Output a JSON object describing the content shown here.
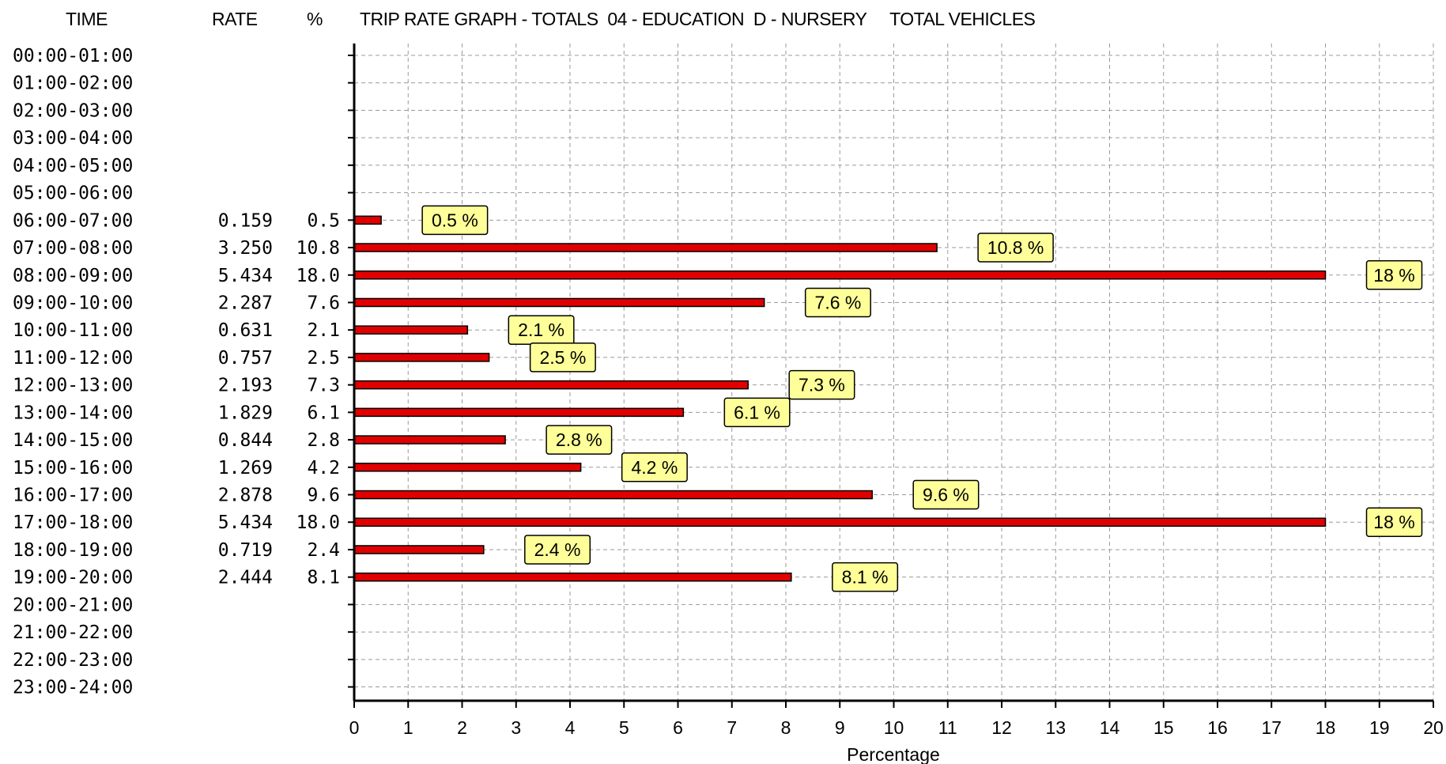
{
  "header": {
    "time_col": "TIME",
    "rate_col": "RATE",
    "pct_col": "%",
    "title": "TRIP RATE GRAPH - TOTALS  04 - EDUCATION  D - NURSERY     TOTAL VEHICLES"
  },
  "chart_data": {
    "type": "bar",
    "orientation": "horizontal",
    "title": "TRIP RATE GRAPH - TOTALS  04 - EDUCATION  D - NURSERY     TOTAL VEHICLES",
    "xlabel": "Percentage",
    "xlim": [
      0,
      20
    ],
    "xticks": [
      "0",
      "1",
      "2",
      "3",
      "4",
      "5",
      "6",
      "7",
      "8",
      "9",
      "10",
      "11",
      "12",
      "13",
      "14",
      "15",
      "16",
      "17",
      "18",
      "19",
      "20"
    ],
    "grid": true,
    "bar_color": "#e00000",
    "label_bg": "#ffff99",
    "rows": [
      {
        "time": "00:00-01:00",
        "rate": "",
        "pct": "",
        "value": null,
        "label": ""
      },
      {
        "time": "01:00-02:00",
        "rate": "",
        "pct": "",
        "value": null,
        "label": ""
      },
      {
        "time": "02:00-03:00",
        "rate": "",
        "pct": "",
        "value": null,
        "label": ""
      },
      {
        "time": "03:00-04:00",
        "rate": "",
        "pct": "",
        "value": null,
        "label": ""
      },
      {
        "time": "04:00-05:00",
        "rate": "",
        "pct": "",
        "value": null,
        "label": ""
      },
      {
        "time": "05:00-06:00",
        "rate": "",
        "pct": "",
        "value": null,
        "label": ""
      },
      {
        "time": "06:00-07:00",
        "rate": "0.159",
        "pct": "0.5",
        "value": 0.5,
        "label": "0.5 %"
      },
      {
        "time": "07:00-08:00",
        "rate": "3.250",
        "pct": "10.8",
        "value": 10.8,
        "label": "10.8 %"
      },
      {
        "time": "08:00-09:00",
        "rate": "5.434",
        "pct": "18.0",
        "value": 18.0,
        "label": "18 %"
      },
      {
        "time": "09:00-10:00",
        "rate": "2.287",
        "pct": "7.6",
        "value": 7.6,
        "label": "7.6 %"
      },
      {
        "time": "10:00-11:00",
        "rate": "0.631",
        "pct": "2.1",
        "value": 2.1,
        "label": "2.1 %"
      },
      {
        "time": "11:00-12:00",
        "rate": "0.757",
        "pct": "2.5",
        "value": 2.5,
        "label": "2.5 %"
      },
      {
        "time": "12:00-13:00",
        "rate": "2.193",
        "pct": "7.3",
        "value": 7.3,
        "label": "7.3 %"
      },
      {
        "time": "13:00-14:00",
        "rate": "1.829",
        "pct": "6.1",
        "value": 6.1,
        "label": "6.1 %"
      },
      {
        "time": "14:00-15:00",
        "rate": "0.844",
        "pct": "2.8",
        "value": 2.8,
        "label": "2.8 %"
      },
      {
        "time": "15:00-16:00",
        "rate": "1.269",
        "pct": "4.2",
        "value": 4.2,
        "label": "4.2 %"
      },
      {
        "time": "16:00-17:00",
        "rate": "2.878",
        "pct": "9.6",
        "value": 9.6,
        "label": "9.6 %"
      },
      {
        "time": "17:00-18:00",
        "rate": "5.434",
        "pct": "18.0",
        "value": 18.0,
        "label": "18 %"
      },
      {
        "time": "18:00-19:00",
        "rate": "0.719",
        "pct": "2.4",
        "value": 2.4,
        "label": "2.4 %"
      },
      {
        "time": "19:00-20:00",
        "rate": "2.444",
        "pct": "8.1",
        "value": 8.1,
        "label": "8.1 %"
      },
      {
        "time": "20:00-21:00",
        "rate": "",
        "pct": "",
        "value": null,
        "label": ""
      },
      {
        "time": "21:00-22:00",
        "rate": "",
        "pct": "",
        "value": null,
        "label": ""
      },
      {
        "time": "22:00-23:00",
        "rate": "",
        "pct": "",
        "value": null,
        "label": ""
      },
      {
        "time": "23:00-24:00",
        "rate": "",
        "pct": "",
        "value": null,
        "label": ""
      }
    ]
  }
}
